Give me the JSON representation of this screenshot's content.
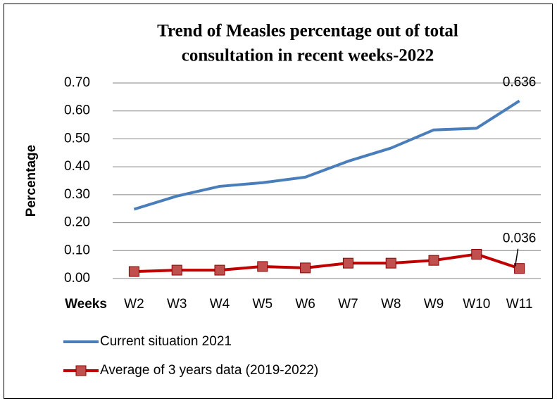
{
  "chart_data": {
    "type": "line",
    "title": "Trend of Measles percentage out of total consultation in recent weeks-2022",
    "title_lines": [
      "Trend of Measles percentage out of total",
      "consultation in recent weeks-2022"
    ],
    "y_label": "Percentage",
    "x_label": "Weeks",
    "categories": [
      "W2",
      "W3",
      "W4",
      "W5",
      "W6",
      "W7",
      "W8",
      "W9",
      "W10",
      "W11"
    ],
    "series": [
      {
        "name": "Current situation 2021",
        "color": "#4a7ebb",
        "marker": "none",
        "values": [
          0.248,
          0.295,
          0.33,
          0.343,
          0.363,
          0.42,
          0.467,
          0.532,
          0.538,
          0.636
        ],
        "value_labels": [
          null,
          null,
          null,
          null,
          null,
          null,
          null,
          null,
          null,
          "0.636"
        ]
      },
      {
        "name": "Average of 3 years data (2019-2022)",
        "color": "#c00000",
        "marker": "square",
        "values": [
          0.025,
          0.03,
          0.03,
          0.043,
          0.038,
          0.055,
          0.055,
          0.065,
          0.087,
          0.036
        ],
        "value_labels": [
          null,
          null,
          null,
          null,
          null,
          null,
          null,
          null,
          null,
          "0.036"
        ]
      }
    ],
    "ylim": [
      0,
      0.7
    ],
    "yticks": [
      {
        "value": 0,
        "label": "0.00"
      },
      {
        "value": 0.1,
        "label": "0.10"
      },
      {
        "value": 0.2,
        "label": "0.20"
      },
      {
        "value": 0.3,
        "label": "0.30"
      },
      {
        "value": 0.4,
        "label": "0.40"
      },
      {
        "value": 0.5,
        "label": "0.50"
      },
      {
        "value": 0.6,
        "label": "0.60"
      },
      {
        "value": 0.7,
        "label": "0.70"
      }
    ],
    "grid": true,
    "legend": "bottom"
  }
}
